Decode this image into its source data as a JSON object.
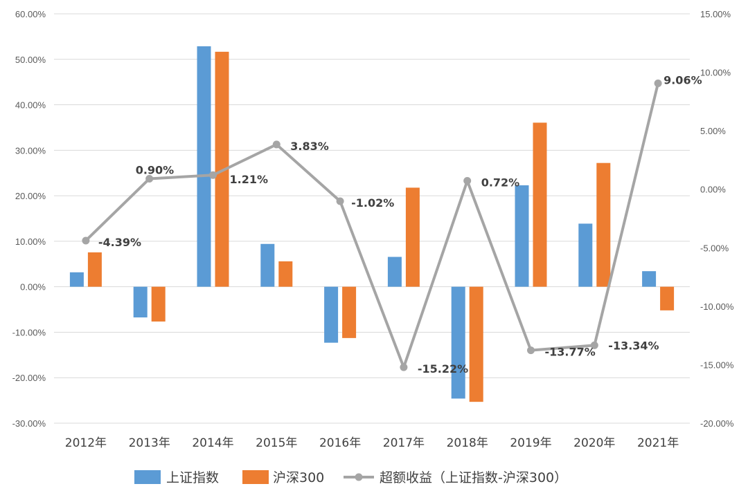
{
  "chart_data": {
    "type": "bar",
    "categories": [
      "2012年",
      "2013年",
      "2014年",
      "2015年",
      "2016年",
      "2017年",
      "2018年",
      "2019年",
      "2020年",
      "2021年"
    ],
    "series": [
      {
        "name": "上证指数",
        "type": "bar",
        "axis": "left",
        "color": "#5B9BD5",
        "values": [
          3.17,
          -6.75,
          52.87,
          9.41,
          -12.31,
          6.56,
          -24.59,
          22.3,
          13.87,
          3.42
        ]
      },
      {
        "name": "沪深300",
        "type": "bar",
        "axis": "left",
        "color": "#ED7D31",
        "values": [
          7.55,
          -7.65,
          51.66,
          5.58,
          -11.28,
          21.78,
          -25.31,
          36.07,
          27.21,
          -5.2
        ]
      },
      {
        "name": "超额收益（上证指数-沪深300）",
        "type": "line",
        "axis": "right",
        "color": "#A5A5A5",
        "values": [
          -4.39,
          0.9,
          1.21,
          3.83,
          -1.02,
          -15.22,
          0.72,
          -13.77,
          -13.34,
          9.06
        ],
        "labels": [
          "-4.39%",
          "0.90%",
          "1.21%",
          "3.83%",
          "-1.02%",
          "-15.22%",
          "0.72%",
          "-13.77%",
          "-13.34%",
          "9.06%"
        ]
      }
    ],
    "y_left": {
      "ylim": [
        -30,
        60
      ],
      "ticks": [
        "60.00%",
        "50.00%",
        "40.00%",
        "30.00%",
        "20.00%",
        "10.00%",
        "0.00%",
        "-10.00%",
        "-20.00%",
        "-30.00%"
      ]
    },
    "y_right": {
      "ylim": [
        -20,
        15
      ],
      "ticks": [
        "15.00%",
        "10.00%",
        "5.00%",
        "0.00%",
        "-5.00%",
        "-10.00%",
        "-15.00%",
        "-20.00%"
      ]
    },
    "grid": true,
    "legend_position": "bottom"
  },
  "legend": {
    "items": [
      "上证指数",
      "沪深300",
      "超额收益（上证指数-沪深300）"
    ]
  }
}
